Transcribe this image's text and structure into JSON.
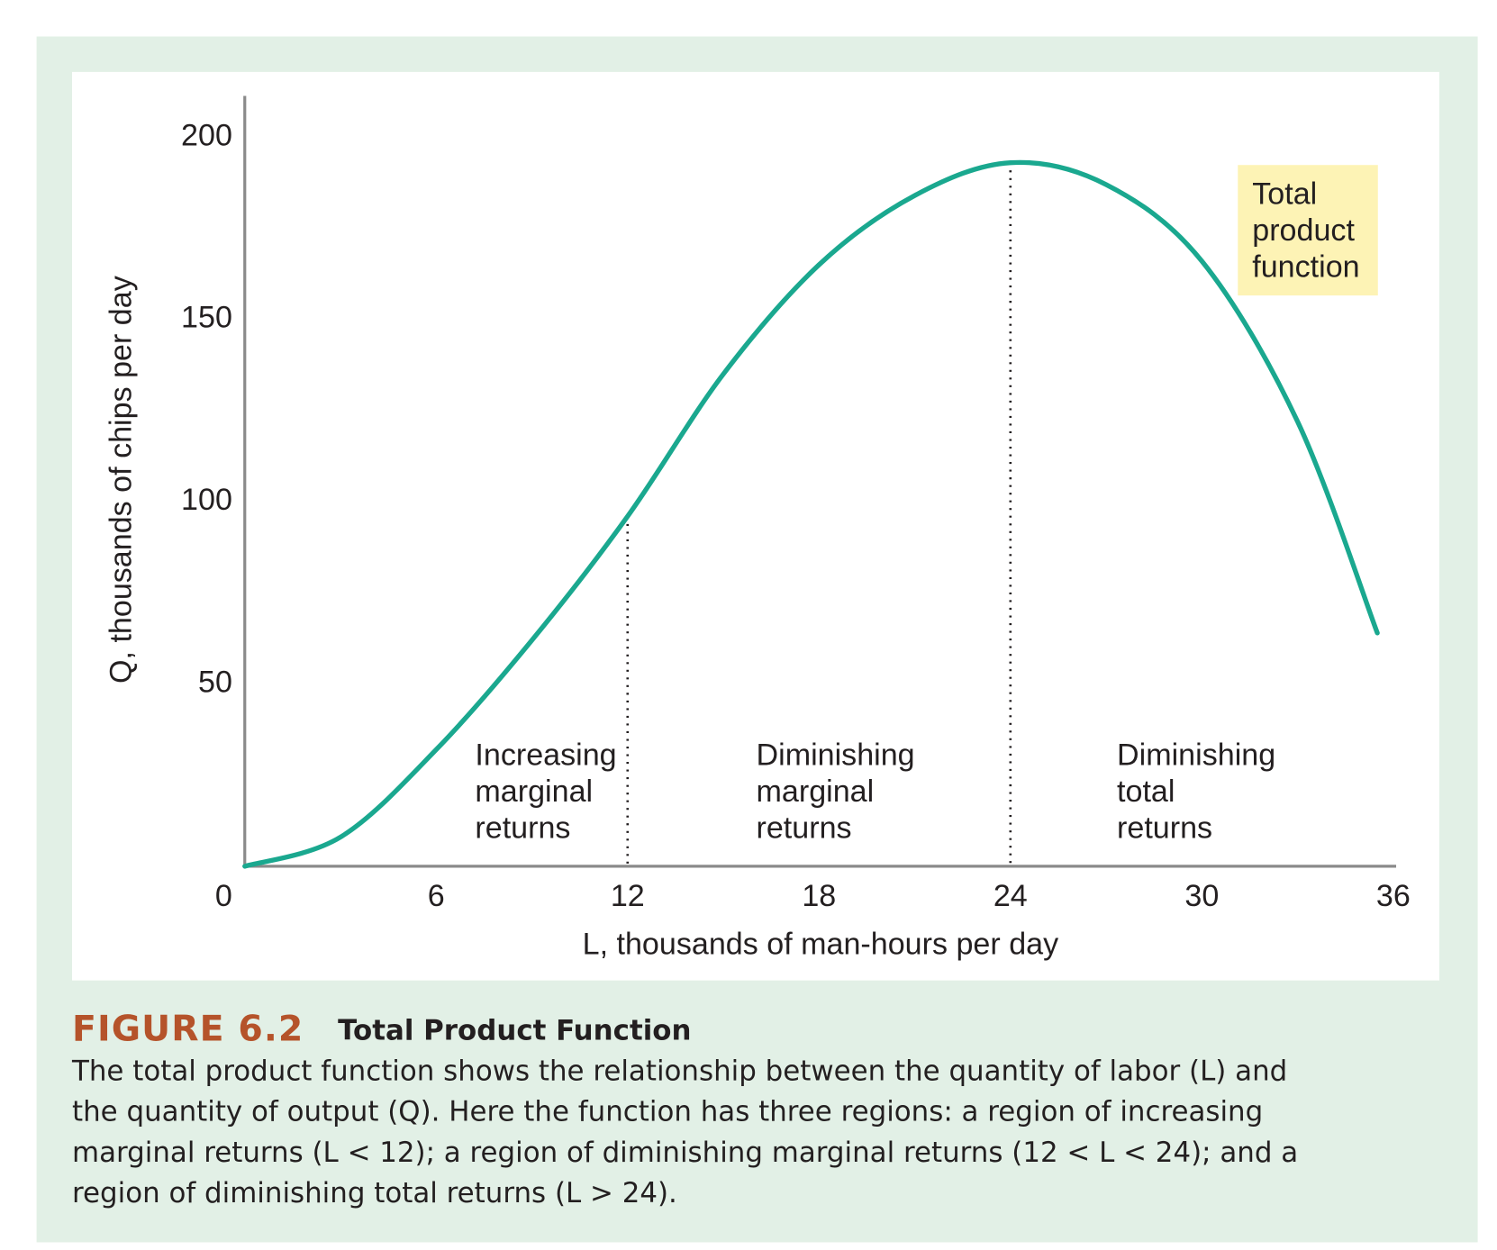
{
  "chart_data": {
    "type": "line",
    "x_label": "L, thousands of man-hours per day",
    "y_label": "Q, thousands of chips per day",
    "x": [
      0,
      3,
      6,
      9,
      12,
      15,
      18,
      21,
      24,
      27,
      30,
      33,
      35.5
    ],
    "series": [
      {
        "name": "Total product function",
        "color": "#1aa88f",
        "values": [
          0,
          8,
          32,
          62,
          96,
          135,
          165,
          184,
          193,
          187,
          166,
          122,
          64
        ]
      }
    ],
    "xlim": [
      0,
      36
    ],
    "ylim": [
      0,
      210
    ],
    "xticks": [
      0,
      6,
      12,
      18,
      24,
      30,
      36
    ],
    "yticks": [
      50,
      100,
      150,
      200
    ],
    "reference_x": [
      12,
      24
    ],
    "annotations": [
      {
        "lines": [
          "Increasing",
          "marginal",
          "returns"
        ]
      },
      {
        "lines": [
          "Diminishing",
          "marginal",
          "returns"
        ]
      },
      {
        "lines": [
          "Diminishing",
          "total",
          "returns"
        ]
      }
    ],
    "callout": {
      "lines": [
        "Total",
        "product",
        "function"
      ]
    }
  },
  "caption": {
    "figure": "FIGURE 6.2",
    "title": "Total Product Function",
    "lines": [
      "The total product function shows the relationship between the quantity of labor (L) and",
      "the quantity of output (Q). Here the function has three regions: a region of increasing",
      "marginal returns (L < 12); a region of diminishing marginal returns (12 < L < 24); and a",
      "region of diminishing total returns (L > 24)."
    ]
  }
}
